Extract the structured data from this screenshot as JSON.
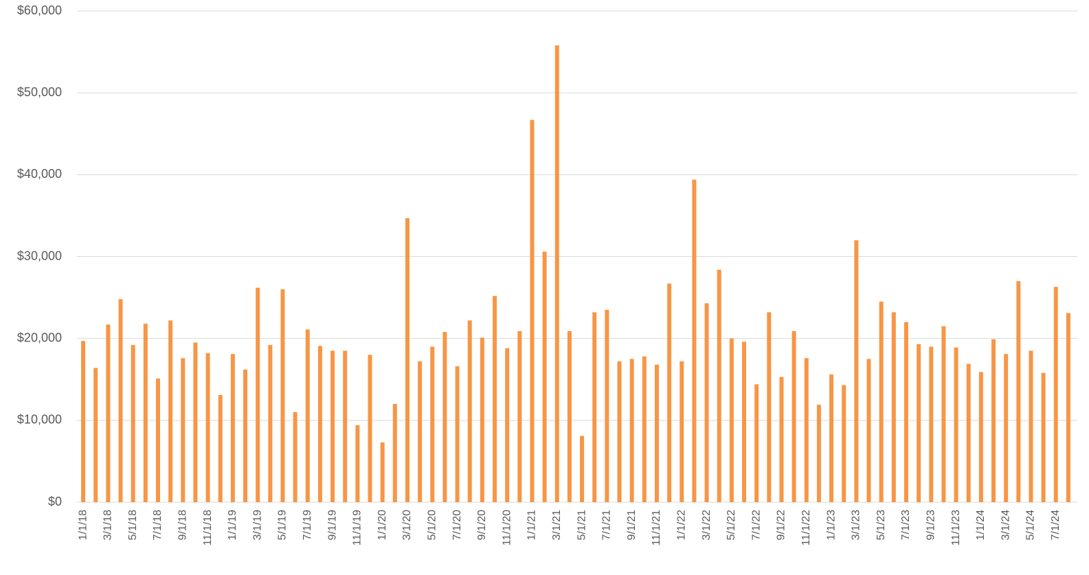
{
  "chart_data": {
    "type": "bar",
    "categories": [
      "1/1/18",
      null,
      "3/1/18",
      null,
      "5/1/18",
      null,
      "7/1/18",
      null,
      "9/1/18",
      null,
      "11/1/18",
      null,
      "1/1/19",
      null,
      "3/1/19",
      null,
      "5/1/19",
      null,
      "7/1/19",
      null,
      "9/1/19",
      null,
      "11/1/19",
      null,
      "1/1/20",
      null,
      "3/1/20",
      null,
      "5/1/20",
      null,
      "7/1/20",
      null,
      "9/1/20",
      null,
      "11/1/20",
      null,
      "1/1/21",
      null,
      "3/1/21",
      null,
      "5/1/21",
      null,
      "7/1/21",
      null,
      "9/1/21",
      null,
      "11/1/21",
      null,
      "1/1/22",
      null,
      "3/1/22",
      null,
      "5/1/22",
      null,
      "7/1/22",
      null,
      "9/1/22",
      null,
      "11/1/22",
      null,
      "1/1/23",
      null,
      "3/1/23",
      null,
      "5/1/23",
      null,
      "7/1/23",
      null,
      "9/1/23",
      null,
      "11/1/23",
      null,
      "1/1/24",
      null,
      "3/1/24",
      null,
      "5/1/24",
      null,
      "7/1/24",
      null
    ],
    "values": [
      19700,
      16400,
      21700,
      24800,
      19200,
      21800,
      15100,
      22200,
      17600,
      19500,
      18200,
      13100,
      18100,
      16200,
      26200,
      19200,
      26000,
      11000,
      21100,
      19100,
      18500,
      18500,
      9400,
      18000,
      7300,
      12000,
      34700,
      17200,
      19000,
      20800,
      16600,
      22200,
      20100,
      25200,
      18800,
      20900,
      46700,
      30600,
      55800,
      20900,
      8100,
      23200,
      23500,
      17200,
      17500,
      17800,
      16800,
      26700,
      17200,
      39400,
      24300,
      28400,
      20000,
      19600,
      14400,
      23200,
      15300,
      20900,
      17600,
      11900,
      15600,
      14300,
      32000,
      17500,
      24500,
      23200,
      22000,
      19300,
      19000,
      21500,
      18900,
      16900,
      15900,
      19900,
      18100,
      27000,
      18500,
      15800,
      26300,
      23100
    ],
    "color": "#f79646",
    "ylim": [
      0,
      60000
    ],
    "yticks": [
      {
        "value": 0,
        "label": "$0"
      },
      {
        "value": 10000,
        "label": "$10,000"
      },
      {
        "value": 20000,
        "label": "$20,000"
      },
      {
        "value": 30000,
        "label": "$30,000"
      },
      {
        "value": 40000,
        "label": "$40,000"
      },
      {
        "value": 50000,
        "label": "$50,000"
      },
      {
        "value": 60000,
        "label": "$60,000"
      }
    ],
    "grid": true
  }
}
